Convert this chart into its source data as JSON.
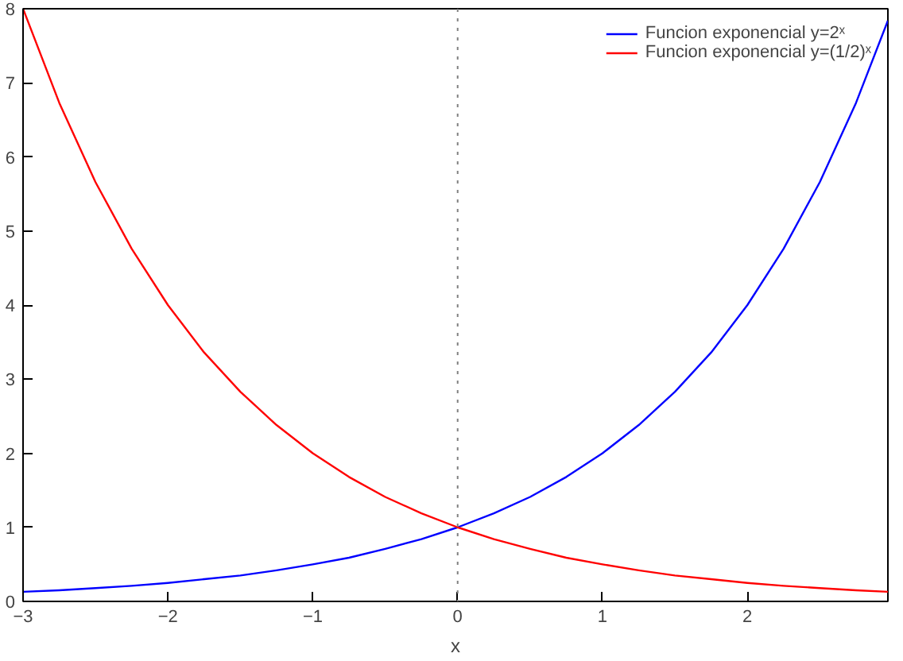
{
  "chart_data": {
    "type": "line",
    "xlabel": "x",
    "xlim": [
      -3,
      2.97
    ],
    "ylim": [
      0,
      8
    ],
    "xticks": [
      -3,
      -2,
      -1,
      0,
      1,
      2
    ],
    "yticks": [
      0,
      1,
      2,
      3,
      4,
      5,
      6,
      7,
      8
    ],
    "grid": false,
    "legend": "top right",
    "marker": "none",
    "line_style": "solid",
    "x": [
      -3,
      -2.75,
      -2.5,
      -2.25,
      -2,
      -1.75,
      -1.5,
      -1.25,
      -1,
      -0.75,
      -0.5,
      -0.25,
      0,
      0.25,
      0.5,
      0.75,
      1,
      1.25,
      1.5,
      1.75,
      2,
      2.25,
      2.5,
      2.75,
      2.97
    ],
    "series": [
      {
        "name": "Funcion exponencial y=2ˣ",
        "color": "#0000ff",
        "values": [
          0.13,
          0.15,
          0.18,
          0.21,
          0.25,
          0.3,
          0.35,
          0.42,
          0.5,
          0.59,
          0.71,
          0.84,
          1,
          1.19,
          1.41,
          1.68,
          2,
          2.38,
          2.83,
          3.36,
          4,
          4.76,
          5.66,
          6.73,
          7.84
        ]
      },
      {
        "name": "Funcion exponencial y=(1/2)ˣ",
        "color": "#ff0000",
        "values": [
          8,
          6.73,
          5.66,
          4.76,
          4,
          3.36,
          2.83,
          2.38,
          2,
          1.68,
          1.41,
          1.19,
          1,
          0.84,
          0.71,
          0.59,
          0.5,
          0.42,
          0.35,
          0.3,
          0.25,
          0.21,
          0.18,
          0.15,
          0.13
        ]
      }
    ],
    "ref_lines": [
      {
        "axis": "x",
        "value": 0,
        "color": "#808080",
        "line_style": "dotted"
      }
    ]
  }
}
